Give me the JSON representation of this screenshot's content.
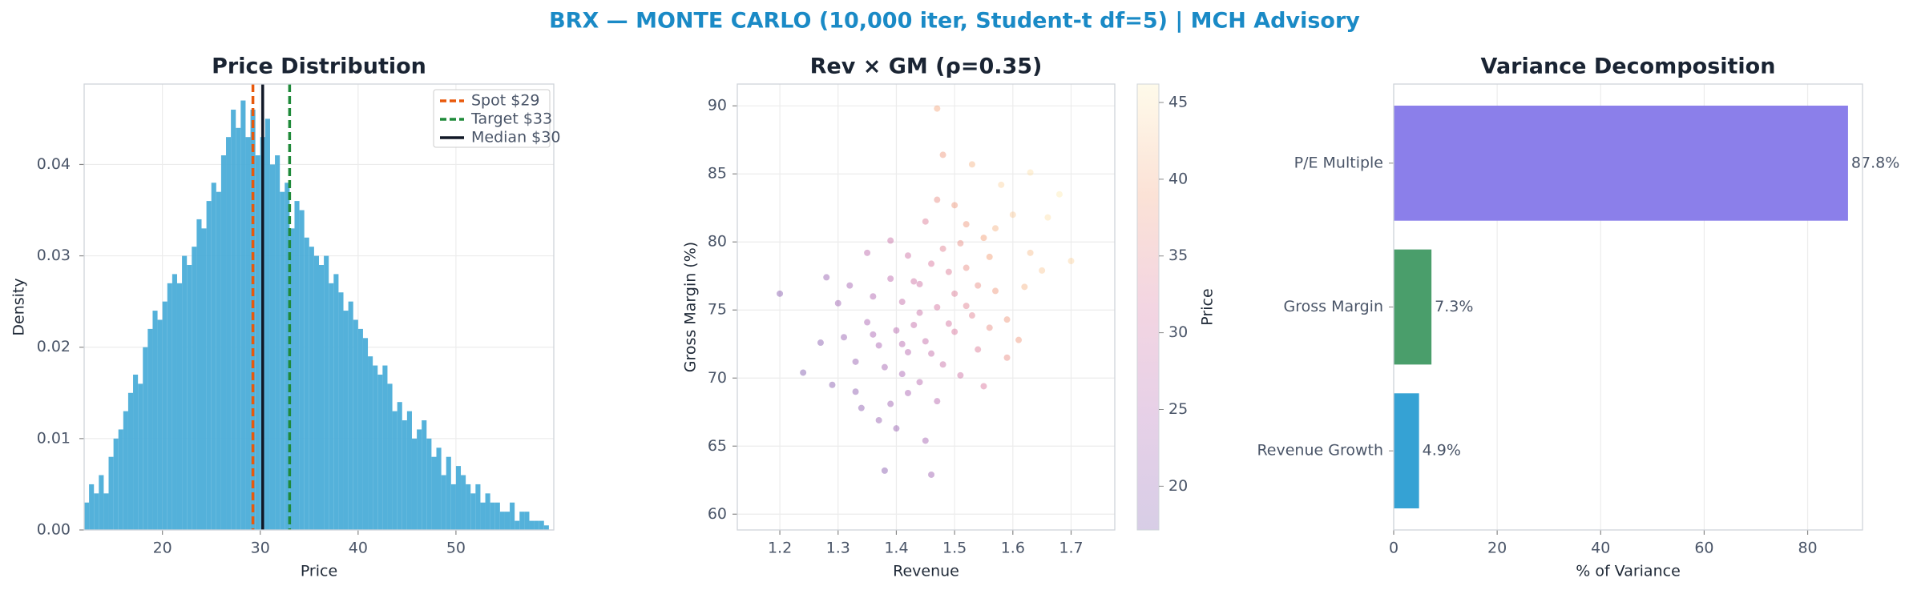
{
  "title": "BRX — MONTE CARLO (10,000 iter, Student-t df=5) | MCH Advisory",
  "chart_data": [
    {
      "type": "histogram",
      "title": "Price Distribution",
      "x_label": "Price",
      "y_label": "Density",
      "bins": [
        12,
        12.5,
        13,
        13.5,
        14,
        14.5,
        15,
        15.5,
        16,
        16.5,
        17,
        17.5,
        18,
        18.5,
        19,
        19.5,
        20,
        20.5,
        21,
        21.5,
        22,
        22.5,
        23,
        23.5,
        24,
        24.5,
        25,
        25.5,
        26,
        26.5,
        27,
        27.5,
        28,
        28.5,
        29,
        29.5,
        30,
        30.5,
        31,
        31.5,
        32,
        32.5,
        33,
        33.5,
        34,
        34.5,
        35,
        35.5,
        36,
        36.5,
        37,
        37.5,
        38,
        38.5,
        39,
        39.5,
        40,
        40.5,
        41,
        41.5,
        42,
        42.5,
        43,
        43.5,
        44,
        44.5,
        45,
        45.5,
        46,
        46.5,
        47,
        47.5,
        48,
        48.5,
        49,
        49.5,
        50,
        50.5,
        51,
        51.5,
        52,
        52.5,
        53,
        53.5,
        54,
        54.5,
        55,
        55.5,
        56,
        56.5,
        57,
        57.5,
        58,
        58.5,
        59,
        59.5
      ],
      "counts": [
        0.003,
        0.005,
        0.004,
        0.006,
        0.004,
        0.008,
        0.01,
        0.011,
        0.013,
        0.015,
        0.017,
        0.016,
        0.02,
        0.022,
        0.024,
        0.023,
        0.025,
        0.027,
        0.028,
        0.027,
        0.03,
        0.029,
        0.031,
        0.034,
        0.033,
        0.036,
        0.038,
        0.037,
        0.041,
        0.043,
        0.046,
        0.044,
        0.047,
        0.043,
        0.046,
        0.041,
        0.043,
        0.045,
        0.04,
        0.041,
        0.037,
        0.038,
        0.033,
        0.036,
        0.035,
        0.032,
        0.031,
        0.03,
        0.029,
        0.03,
        0.027,
        0.028,
        0.026,
        0.024,
        0.025,
        0.023,
        0.022,
        0.021,
        0.019,
        0.018,
        0.017,
        0.018,
        0.016,
        0.013,
        0.014,
        0.012,
        0.013,
        0.01,
        0.011,
        0.012,
        0.01,
        0.008,
        0.009,
        0.006,
        0.008,
        0.005,
        0.007,
        0.006,
        0.005,
        0.004,
        0.005,
        0.003,
        0.004,
        0.003,
        0.003,
        0.002,
        0.002,
        0.003,
        0.001,
        0.002,
        0.002,
        0.001,
        0.001,
        0.001,
        0.0005
      ],
      "color": "#4badd8",
      "xlim": [
        12,
        60
      ],
      "ylim": [
        0,
        0.0488
      ],
      "xticks": [
        20,
        30,
        40,
        50
      ],
      "yticks": [
        {
          "value": 0,
          "label": "0.00"
        },
        {
          "value": 0.01,
          "label": "0.01"
        },
        {
          "value": 0.02,
          "label": "0.02"
        },
        {
          "value": 0.03,
          "label": "0.03"
        },
        {
          "value": 0.04,
          "label": "0.04"
        }
      ],
      "grid": true,
      "legend": "upper right",
      "vlines": [
        {
          "name": "Spot $29",
          "x": 29.25,
          "color": "#e8590c",
          "dashed": true
        },
        {
          "name": "Target $33",
          "x": 33.0,
          "color": "#1f8a3a",
          "dashed": true
        },
        {
          "name": "Median $30",
          "x": 30.25,
          "color": "#111827",
          "dashed": false
        }
      ]
    },
    {
      "type": "scatter",
      "title": "Rev × GM (ρ=0.35)",
      "x_label": "Revenue",
      "y_label": "Gross Margin (%)",
      "x": [
        1.47,
        1.52,
        1.41,
        1.38,
        1.55,
        1.44,
        1.5,
        1.35,
        1.6,
        1.42,
        1.48,
        1.33,
        1.57,
        1.46,
        1.39,
        1.53,
        1.29,
        1.63,
        1.45,
        1.51,
        1.36,
        1.58,
        1.43,
        1.4,
        1.49,
        1.31,
        1.54,
        1.47,
        1.37,
        1.62,
        1.44,
        1.52,
        1.34,
        1.56,
        1.41,
        1.48,
        1.27,
        1.66,
        1.45,
        1.5,
        1.39,
        1.59,
        1.32,
        1.46,
        1.42,
        1.55,
        1.37,
        1.53,
        1.43,
        1.49,
        1.24,
        1.61,
        1.4,
        1.47,
        1.35,
        1.57,
        1.44,
        1.51,
        1.3,
        1.65,
        1.38,
        1.48,
        1.41,
        1.54,
        1.36,
        1.59,
        1.45,
        1.5,
        1.33,
        1.68,
        1.46,
        1.28,
        1.52,
        1.42,
        1.56,
        1.2,
        1.63,
        1.39,
        1.7,
        1.47
      ],
      "y": [
        75.2,
        78.1,
        72.5,
        70.8,
        80.3,
        76.9,
        73.4,
        74.1,
        82.0,
        68.9,
        79.5,
        71.2,
        76.4,
        71.8,
        77.3,
        74.6,
        69.5,
        79.2,
        81.5,
        70.2,
        76.0,
        84.2,
        73.9,
        66.3,
        77.8,
        73.0,
        72.1,
        83.1,
        72.4,
        76.7,
        69.7,
        81.3,
        67.8,
        78.9,
        75.6,
        71.0,
        72.6,
        81.8,
        65.4,
        76.2,
        80.1,
        74.3,
        76.8,
        78.4,
        71.9,
        69.4,
        66.9,
        85.7,
        77.1,
        74.0,
        70.4,
        72.8,
        73.5,
        68.3,
        79.2,
        81.0,
        74.8,
        79.9,
        75.5,
        77.9,
        63.2,
        86.4,
        70.3,
        76.8,
        73.2,
        71.5,
        72.7,
        82.7,
        69.0,
        83.5,
        62.9,
        77.4,
        75.3,
        79.0,
        73.7,
        76.2,
        85.1,
        68.1,
        78.6,
        89.8
      ],
      "c": [
        31,
        36,
        26,
        23,
        39,
        30,
        32,
        24,
        43,
        24,
        34,
        21,
        38,
        28,
        27,
        34,
        19,
        42,
        33,
        30,
        25,
        44,
        28,
        21,
        33,
        21,
        33,
        36,
        24,
        41,
        26,
        38,
        20,
        39,
        28,
        29,
        19,
        45,
        23,
        33,
        29,
        38,
        23,
        32,
        26,
        32,
        21,
        41,
        30,
        31,
        18,
        38,
        26,
        26,
        27,
        41,
        29,
        36,
        22,
        43,
        19,
        38,
        24,
        36,
        24,
        36,
        28,
        38,
        20,
        46,
        22,
        21,
        34,
        30,
        36,
        19,
        45,
        22,
        44,
        40
      ],
      "colormap": [
        "#4b1d8f",
        "#8e2a94",
        "#c8407a",
        "#ee7a45",
        "#fde9a0"
      ],
      "clim": [
        17.15,
        46.2
      ],
      "cticks": [
        20,
        25,
        30,
        35,
        40,
        45
      ],
      "colorbar_label": "Price",
      "xlim": [
        1.127,
        1.775
      ],
      "ylim": [
        58.84,
        91.6
      ],
      "xticks": [
        1.2,
        1.3,
        1.4,
        1.5,
        1.6,
        1.7
      ],
      "yticks": [
        60,
        65,
        70,
        75,
        80,
        85,
        90
      ],
      "grid": true
    },
    {
      "type": "barh",
      "title": "Variance Decomposition",
      "x_label": "% of Variance",
      "categories": [
        "P/E Multiple",
        "Gross Margin",
        "Revenue Growth"
      ],
      "values": [
        87.8,
        7.3,
        4.9
      ],
      "value_labels": [
        "87.8%",
        "7.3%",
        "4.9%"
      ],
      "colors": [
        "#8b7fea",
        "#4a9e6b",
        "#35a2d4"
      ],
      "xlim": [
        0,
        90.6
      ],
      "xticks": [
        0,
        20,
        40,
        60,
        80
      ],
      "grid": true
    }
  ]
}
